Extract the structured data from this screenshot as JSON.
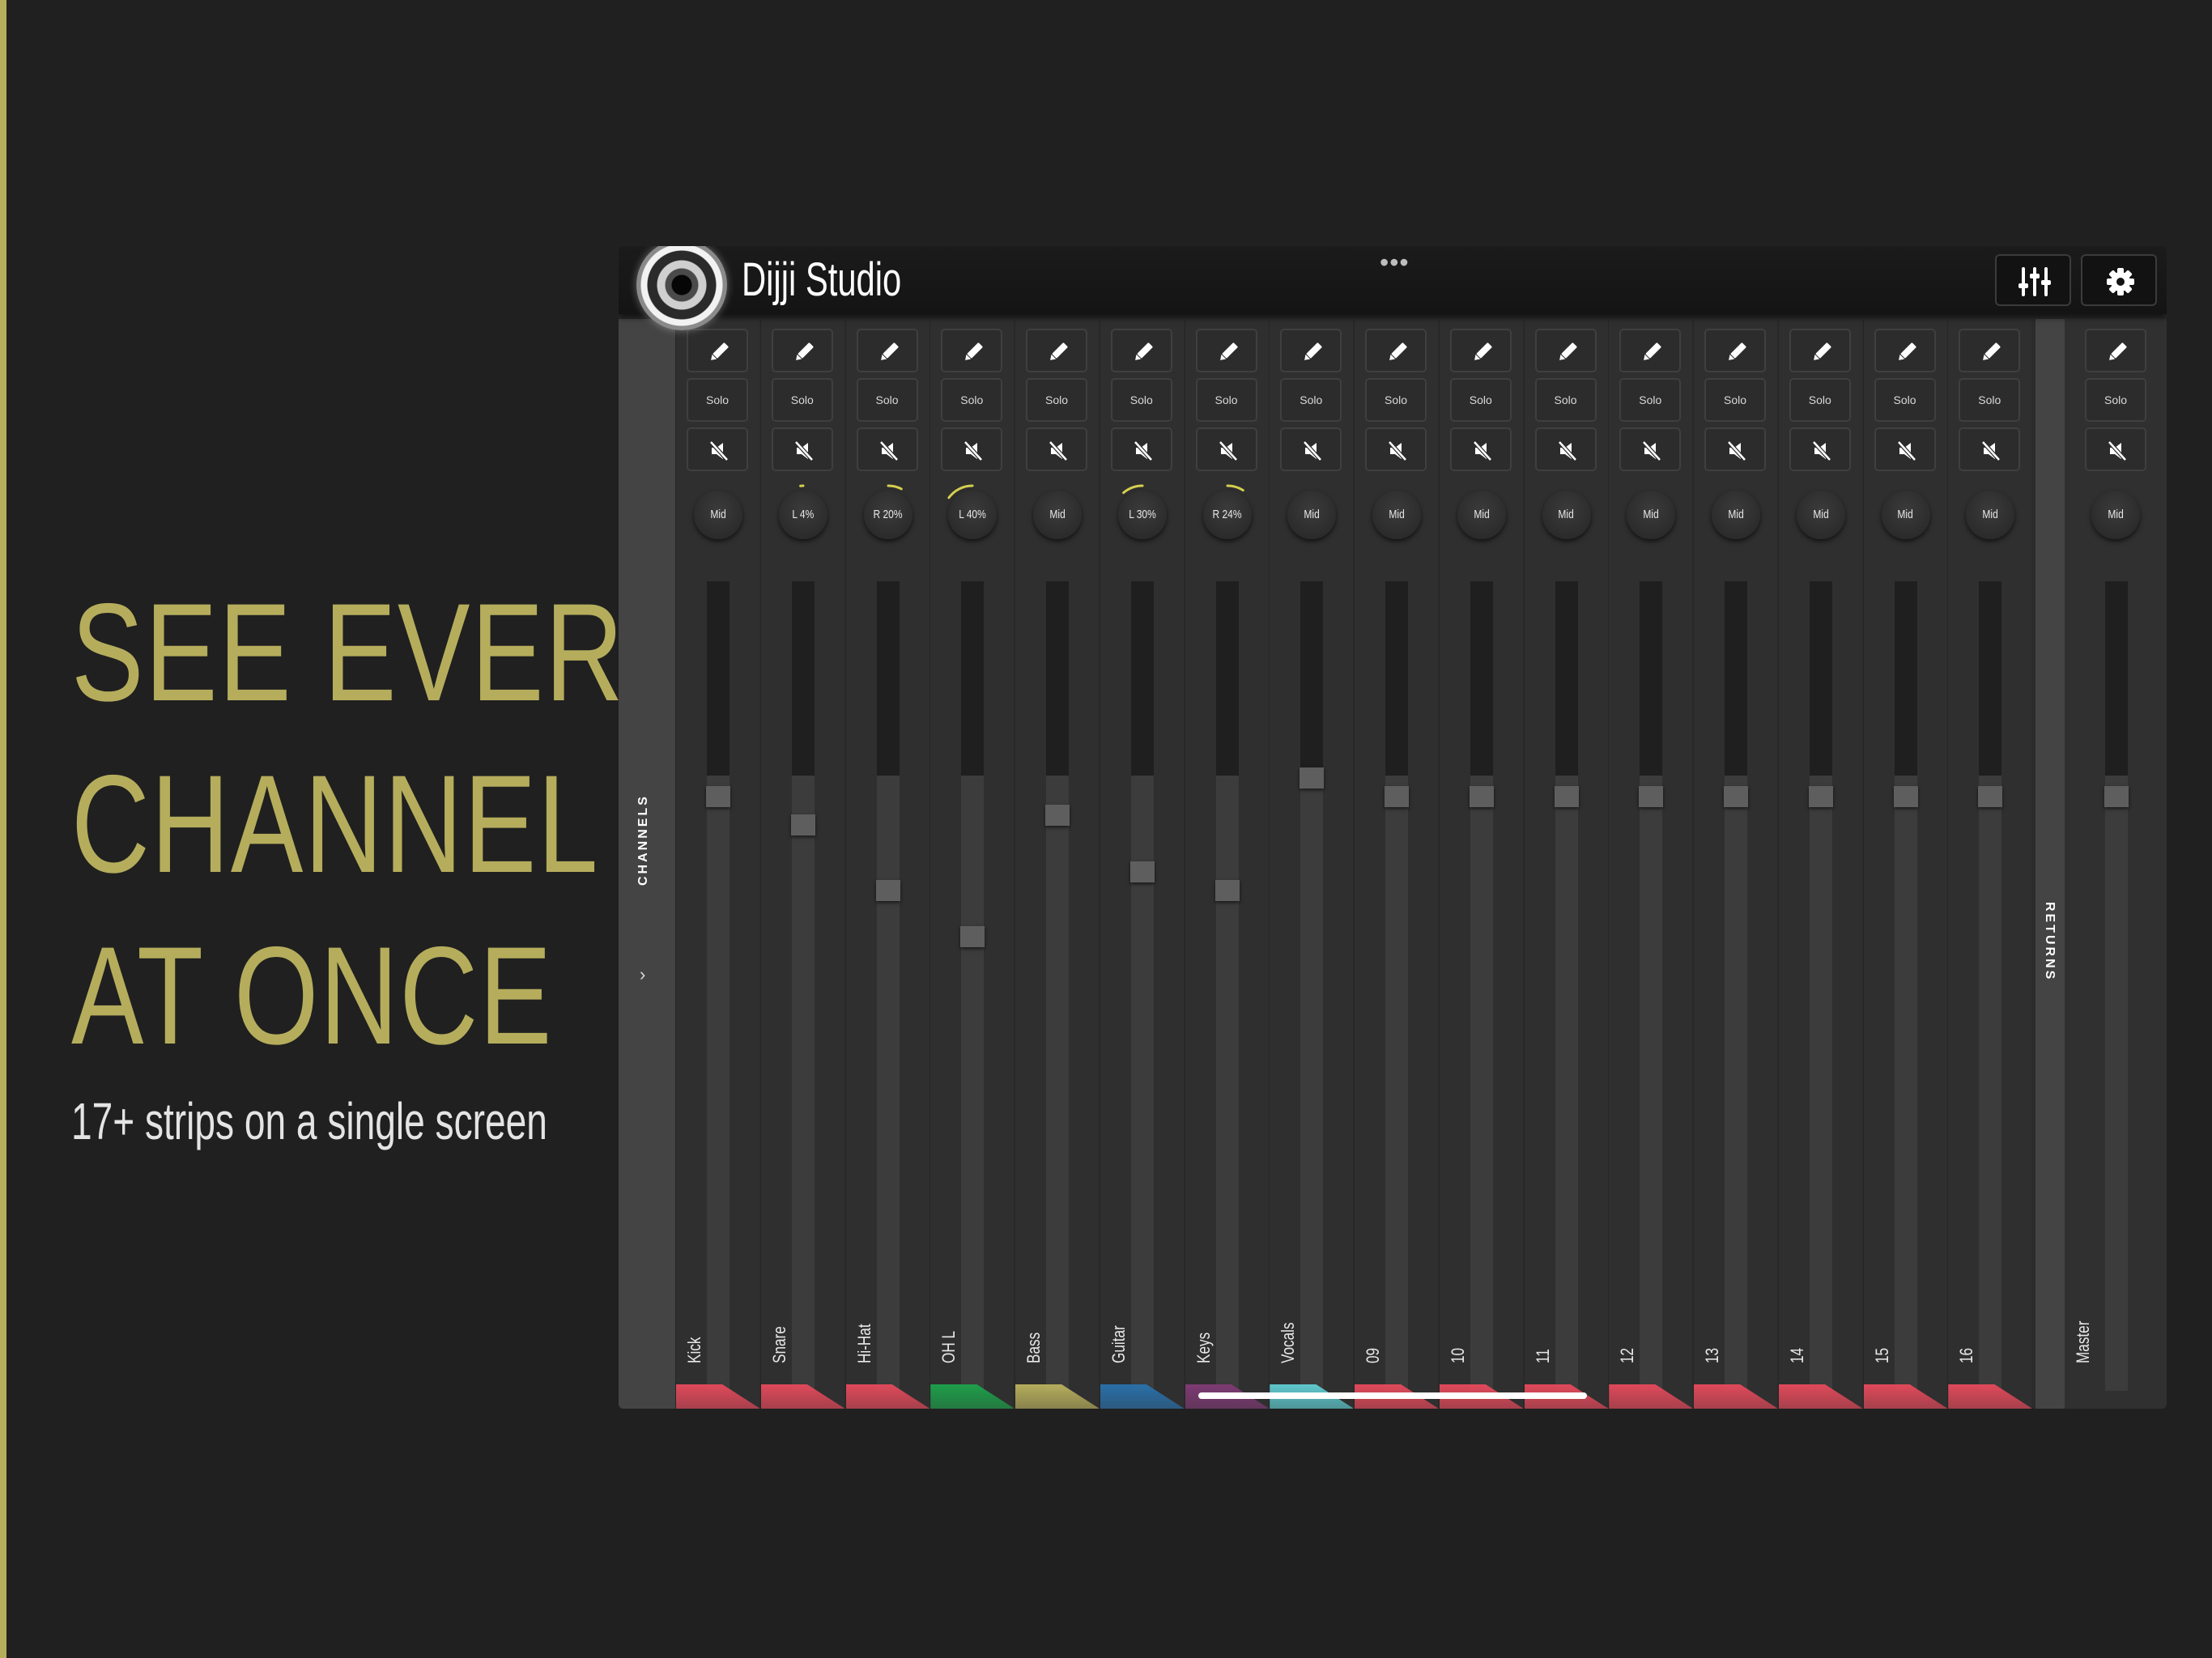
{
  "promo": {
    "headline": [
      "SEE EVERY",
      "CHANNEL",
      "AT ONCE"
    ],
    "subline": "17+ strips on a single screen",
    "accent_color": "#b5ad5c"
  },
  "app": {
    "title": "Dijji Studio",
    "more_icon": "ellipsis-icon",
    "toolbar": {
      "mixer_icon": "sliders-icon",
      "settings_icon": "gear-icon"
    },
    "channels_tab_label": "CHANNELS",
    "returns_tab_label": "RETURNS"
  },
  "strip_labels": {
    "solo": "Solo"
  },
  "channels": [
    {
      "name": "Kick",
      "pan": "Mid",
      "pan_value": 0,
      "fader": 0.56,
      "color": "#e0495a"
    },
    {
      "name": "Snare",
      "pan": "L 4%",
      "pan_value": -4,
      "fader": 0.5,
      "color": "#e0495a"
    },
    {
      "name": "Hi-Hat",
      "pan": "R 20%",
      "pan_value": 20,
      "fader": 0.36,
      "color": "#e0495a"
    },
    {
      "name": "OH L",
      "pan": "L 40%",
      "pan_value": -40,
      "fader": 0.26,
      "color": "#1e9e4a"
    },
    {
      "name": "Bass",
      "pan": "Mid",
      "pan_value": 0,
      "fader": 0.52,
      "color": "#b5ad5c"
    },
    {
      "name": "Guitar",
      "pan": "L 30%",
      "pan_value": -30,
      "fader": 0.4,
      "color": "#2a6fa8"
    },
    {
      "name": "Keys",
      "pan": "R 24%",
      "pan_value": 24,
      "fader": 0.36,
      "color": "#7d3a72"
    },
    {
      "name": "Vocals",
      "pan": "Mid",
      "pan_value": 0,
      "fader": 0.6,
      "color": "#5ec7cc"
    },
    {
      "name": "09",
      "pan": "Mid",
      "pan_value": 0,
      "fader": 0.56,
      "color": "#e0495a"
    },
    {
      "name": "10",
      "pan": "Mid",
      "pan_value": 0,
      "fader": 0.56,
      "color": "#e0495a"
    },
    {
      "name": "11",
      "pan": "Mid",
      "pan_value": 0,
      "fader": 0.56,
      "color": "#e0495a"
    },
    {
      "name": "12",
      "pan": "Mid",
      "pan_value": 0,
      "fader": 0.56,
      "color": "#e0495a"
    },
    {
      "name": "13",
      "pan": "Mid",
      "pan_value": 0,
      "fader": 0.56,
      "color": "#e0495a"
    },
    {
      "name": "14",
      "pan": "Mid",
      "pan_value": 0,
      "fader": 0.56,
      "color": "#e0495a"
    },
    {
      "name": "15",
      "pan": "Mid",
      "pan_value": 0,
      "fader": 0.56,
      "color": "#e0495a"
    },
    {
      "name": "16",
      "pan": "Mid",
      "pan_value": 0,
      "fader": 0.56,
      "color": "#e0495a"
    }
  ],
  "master": {
    "name": "Master",
    "pan": "Mid",
    "pan_value": 0,
    "fader": 0.56
  }
}
